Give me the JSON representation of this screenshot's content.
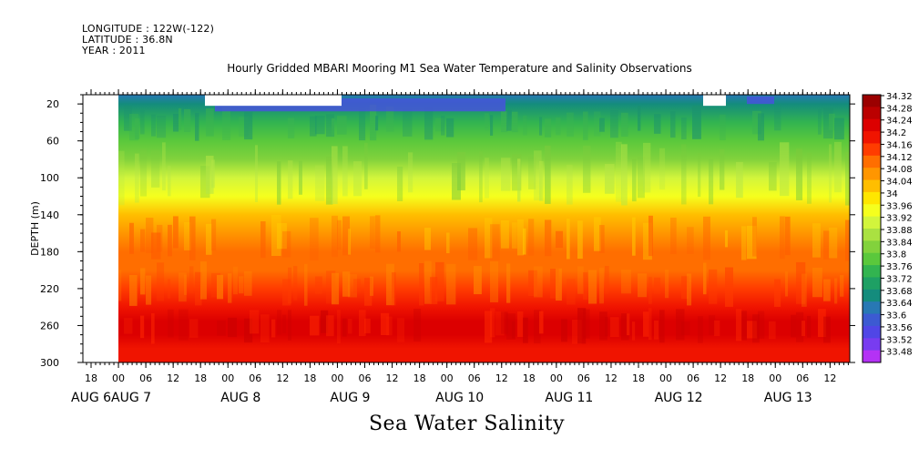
{
  "header": {
    "longitude": "LONGITUDE : 122W(-122)",
    "latitude": "LATITUDE : 36.8N",
    "year": "YEAR : 2011"
  },
  "chart_data": {
    "type": "heatmap",
    "title": "Hourly Gridded MBARI Mooring M1 Sea Water Temperature and Salinity Observations",
    "bottom_title": "Sea Water Salinity",
    "xlabel": "",
    "ylabel": "DEPTH (m)",
    "x_tick_labels": [
      "18",
      "00",
      "06",
      "12",
      "18",
      "00",
      "06",
      "12",
      "18",
      "00",
      "06",
      "12",
      "18",
      "00",
      "06",
      "12",
      "18",
      "00",
      "06",
      "12",
      "18",
      "00",
      "06",
      "12",
      "18",
      "00",
      "06",
      "12"
    ],
    "x_date_labels": [
      "AUG 6",
      "AUG 7",
      "AUG 8",
      "AUG 9",
      "AUG 10",
      "AUG 11",
      "AUG 12",
      "AUG 13"
    ],
    "y_ticks": [
      20,
      60,
      100,
      140,
      180,
      220,
      260,
      300
    ],
    "ylim": [
      10,
      300
    ],
    "y_inverted": true,
    "colorbar_levels": [
      34.32,
      34.28,
      34.24,
      34.2,
      34.16,
      34.12,
      34.08,
      34.04,
      34,
      33.96,
      33.92,
      33.88,
      33.84,
      33.8,
      33.76,
      33.72,
      33.68,
      33.64,
      33.6,
      33.56,
      33.52,
      33.48
    ],
    "colorbar_colors": [
      "#9b0000",
      "#bb0000",
      "#dc0000",
      "#f01400",
      "#ff3c00",
      "#ff6e00",
      "#ff9600",
      "#ffbe00",
      "#ffe600",
      "#f5ff1e",
      "#d2f53c",
      "#aae141",
      "#82d23c",
      "#5ac83c",
      "#32b450",
      "#1ea064",
      "#148c7d",
      "#2878b4",
      "#3c5ad2",
      "#5046e6",
      "#783cf0",
      "#b432f5"
    ],
    "depth_profile": [
      {
        "depth": 10,
        "value": 33.66
      },
      {
        "depth": 20,
        "value": 33.68
      },
      {
        "depth": 40,
        "value": 33.76
      },
      {
        "depth": 60,
        "value": 33.83
      },
      {
        "depth": 80,
        "value": 33.87
      },
      {
        "depth": 100,
        "value": 33.92
      },
      {
        "depth": 120,
        "value": 33.98
      },
      {
        "depth": 140,
        "value": 34.06
      },
      {
        "depth": 160,
        "value": 34.1
      },
      {
        "depth": 180,
        "value": 34.12
      },
      {
        "depth": 200,
        "value": 34.15
      },
      {
        "depth": 220,
        "value": 34.18
      },
      {
        "depth": 240,
        "value": 34.22
      },
      {
        "depth": 255,
        "value": 34.25
      },
      {
        "depth": 270,
        "value": 34.24
      },
      {
        "depth": 285,
        "value": 34.22
      },
      {
        "depth": 300,
        "value": 34.2
      }
    ]
  }
}
